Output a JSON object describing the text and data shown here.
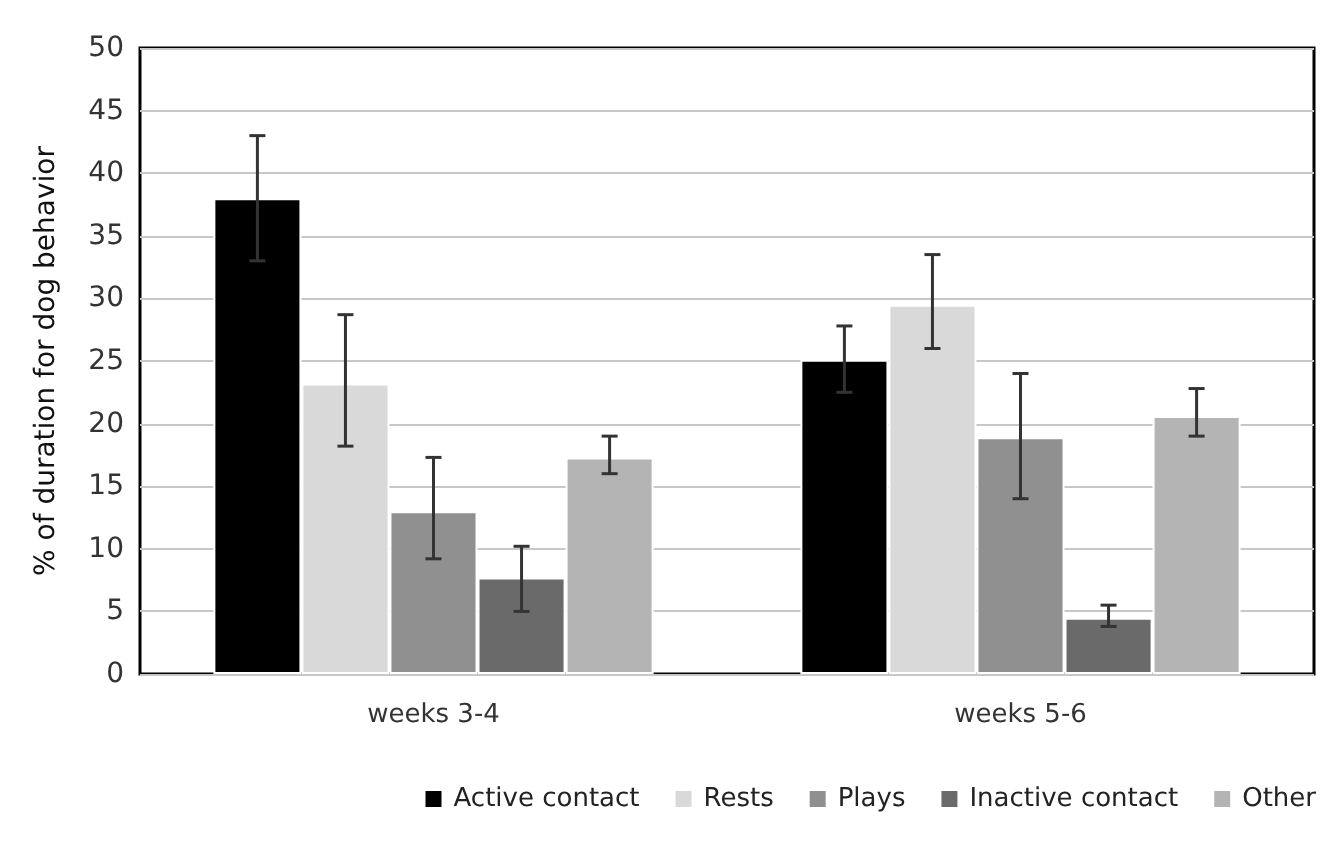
{
  "chart_data": {
    "type": "bar",
    "ylabel": "% of duration for dog behavior",
    "categories": [
      "weeks 3-4",
      "weeks 5-6"
    ],
    "ylim": [
      0,
      50
    ],
    "yticks": [
      0,
      5,
      10,
      15,
      20,
      25,
      30,
      35,
      40,
      45,
      50
    ],
    "grid": "y",
    "legend": "bottom",
    "series": [
      {
        "name": "Active contact",
        "color": "#000000",
        "values": [
          38,
          25.1
        ],
        "errors": [
          [
            33,
            43
          ],
          [
            22.5,
            27.8
          ]
        ]
      },
      {
        "name": "Rests",
        "color": "#d9d9d9",
        "values": [
          23.2,
          29.5
        ],
        "errors": [
          [
            18.2,
            28.7
          ],
          [
            26,
            33.5
          ]
        ]
      },
      {
        "name": "Plays",
        "color": "#909090",
        "values": [
          13,
          18.9
        ],
        "errors": [
          [
            9.2,
            17.3
          ],
          [
            14,
            24
          ]
        ]
      },
      {
        "name": "Inactive contact",
        "color": "#6a6a6a",
        "values": [
          7.7,
          4.5
        ],
        "errors": [
          [
            5,
            10.2
          ],
          [
            3.8,
            5.5
          ]
        ]
      },
      {
        "name": "Other",
        "color": "#b4b4b4",
        "values": [
          17.3,
          20.6
        ],
        "errors": [
          [
            16,
            19
          ],
          [
            19,
            22.8
          ]
        ]
      }
    ]
  }
}
